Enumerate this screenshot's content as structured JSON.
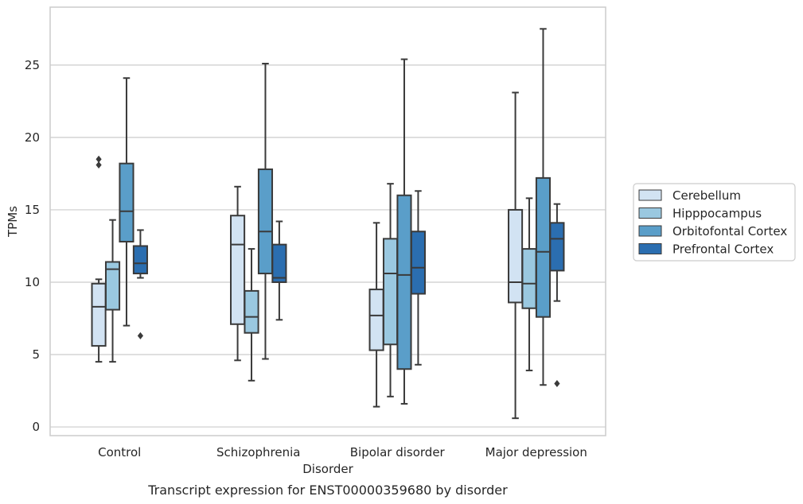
{
  "chart_data": {
    "type": "box",
    "caption": "Transcript expression for ENST00000359680 by disorder",
    "xlabel": "Disorder",
    "ylabel": "TPMs",
    "ylim": [
      -0.6,
      29.0
    ],
    "yticks": [
      0,
      5,
      10,
      15,
      20,
      25
    ],
    "grid": "horizontal",
    "legend_position": "right",
    "categories": [
      "Control",
      "Schizophrenia",
      "Bipolar disorder",
      "Major depression"
    ],
    "series": [
      {
        "name": "Cerebellum",
        "color": "#d2e3f3",
        "boxes": [
          {
            "whislo": 4.5,
            "q1": 5.6,
            "med": 8.3,
            "q3": 9.9,
            "whishi": 10.2,
            "fliers": [
              18.1,
              18.5
            ]
          },
          {
            "whislo": 4.6,
            "q1": 7.1,
            "med": 12.6,
            "q3": 14.6,
            "whishi": 16.6,
            "fliers": []
          },
          {
            "whislo": 1.4,
            "q1": 5.3,
            "med": 7.7,
            "q3": 9.5,
            "whishi": 14.1,
            "fliers": []
          },
          {
            "whislo": 0.6,
            "q1": 8.6,
            "med": 10.0,
            "q3": 15.0,
            "whishi": 23.1,
            "fliers": []
          }
        ]
      },
      {
        "name": "Hipppocampus",
        "color": "#9ac8e0",
        "boxes": [
          {
            "whislo": 4.5,
            "q1": 8.1,
            "med": 10.9,
            "q3": 11.4,
            "whishi": 14.3,
            "fliers": []
          },
          {
            "whislo": 3.2,
            "q1": 6.5,
            "med": 7.6,
            "q3": 9.4,
            "whishi": 12.3,
            "fliers": []
          },
          {
            "whislo": 2.1,
            "q1": 5.7,
            "med": 10.6,
            "q3": 13.0,
            "whishi": 16.8,
            "fliers": []
          },
          {
            "whislo": 3.9,
            "q1": 8.2,
            "med": 9.9,
            "q3": 12.3,
            "whishi": 15.8,
            "fliers": []
          }
        ]
      },
      {
        "name": "Orbitofontal Cortex",
        "color": "#5a9ec9",
        "boxes": [
          {
            "whislo": 7.0,
            "q1": 12.8,
            "med": 14.9,
            "q3": 18.2,
            "whishi": 24.1,
            "fliers": []
          },
          {
            "whislo": 4.7,
            "q1": 10.6,
            "med": 13.5,
            "q3": 17.8,
            "whishi": 25.1,
            "fliers": []
          },
          {
            "whislo": 1.6,
            "q1": 4.0,
            "med": 10.5,
            "q3": 16.0,
            "whishi": 25.4,
            "fliers": []
          },
          {
            "whislo": 2.9,
            "q1": 7.6,
            "med": 12.1,
            "q3": 17.2,
            "whishi": 27.5,
            "fliers": []
          }
        ]
      },
      {
        "name": "Prefrontal Cortex",
        "color": "#2b6eb0",
        "boxes": [
          {
            "whislo": 10.3,
            "q1": 10.6,
            "med": 11.3,
            "q3": 12.5,
            "whishi": 13.6,
            "fliers": [
              6.3
            ]
          },
          {
            "whislo": 7.4,
            "q1": 10.0,
            "med": 10.3,
            "q3": 12.6,
            "whishi": 14.2,
            "fliers": []
          },
          {
            "whislo": 4.3,
            "q1": 9.2,
            "med": 11.0,
            "q3": 13.5,
            "whishi": 16.3,
            "fliers": []
          },
          {
            "whislo": 8.7,
            "q1": 10.8,
            "med": 13.0,
            "q3": 14.1,
            "whishi": 15.4,
            "fliers": [
              3.0
            ]
          }
        ]
      }
    ]
  }
}
